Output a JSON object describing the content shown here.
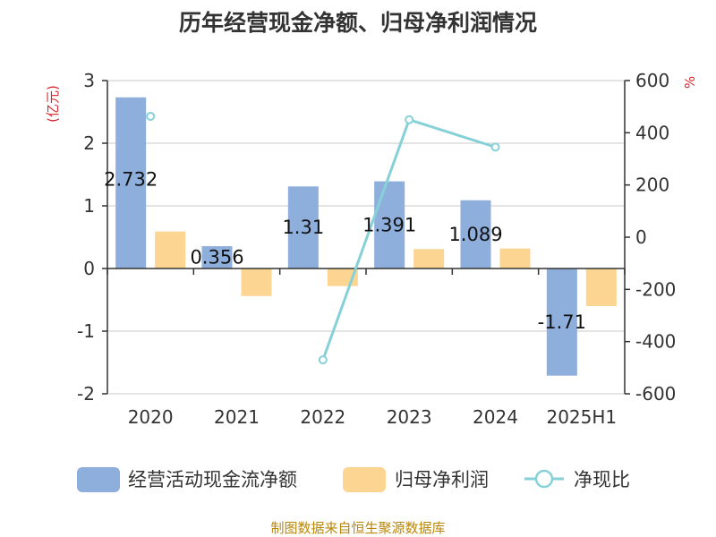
{
  "title": "历年经营现金净额、归母净利润情况",
  "source": "制图数据来自恒生聚源数据库",
  "chart_data": {
    "type": "bar",
    "categories": [
      "2020",
      "2021",
      "2022",
      "2023",
      "2024",
      "2025H1"
    ],
    "series": [
      {
        "name": "经营活动现金流净额",
        "type": "bar",
        "axis": "left",
        "color": "#8eaedc",
        "values": [
          2.732,
          0.356,
          1.31,
          1.391,
          1.089,
          -1.71
        ],
        "data_labels": [
          "2.732",
          "0.356",
          "1.31",
          "1.391",
          "1.089",
          "-1.71"
        ]
      },
      {
        "name": "归母净利润",
        "type": "bar",
        "axis": "left",
        "color": "#fdd593",
        "values": [
          0.59,
          -0.44,
          -0.28,
          0.31,
          0.32,
          -0.6
        ]
      },
      {
        "name": "净现比",
        "type": "line",
        "axis": "right",
        "color": "#86d1d8",
        "values": [
          463,
          null,
          -470,
          450,
          345,
          null
        ]
      }
    ],
    "y_left": {
      "unit": "(亿元)",
      "min": -2,
      "max": 3,
      "ticks": [
        3,
        2,
        1,
        0,
        -1,
        -2
      ],
      "tick_labels": [
        "3",
        "2",
        "1",
        "0",
        "-1",
        "-2"
      ]
    },
    "y_right": {
      "unit": "%",
      "min": -600,
      "max": 600,
      "ticks": [
        600,
        400,
        200,
        0,
        -200,
        -400,
        -600
      ],
      "tick_labels": [
        "600",
        "400",
        "200",
        "0",
        "-200",
        "-400",
        "-600"
      ]
    },
    "grid": true,
    "legend": "bottom"
  }
}
